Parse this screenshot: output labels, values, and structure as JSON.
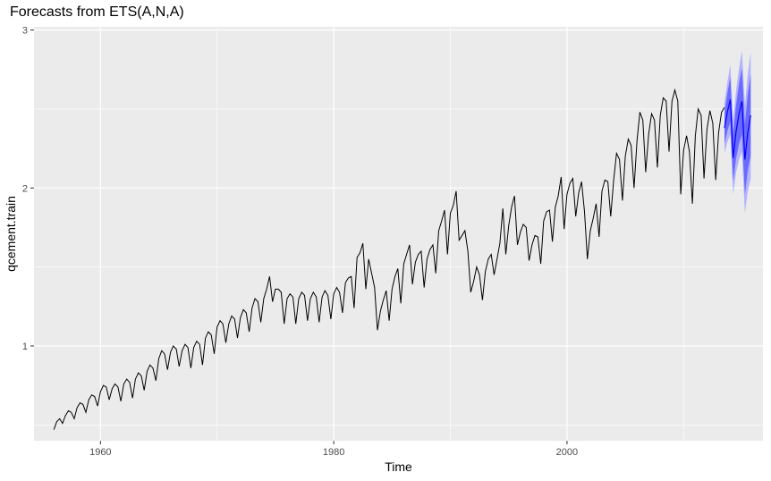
{
  "chart_data": {
    "type": "line",
    "title": "Forecasts from ETS(A,N,A)",
    "xlabel": "Time",
    "ylabel": "qcement.train",
    "xlim": [
      1954.3,
      2016.8
    ],
    "ylim": [
      0.4,
      3.02
    ],
    "x_ticks": [
      1960,
      1980,
      2000
    ],
    "x_tick_labels": [
      "1960",
      "1980",
      "2000"
    ],
    "y_ticks": [
      1,
      2,
      3
    ],
    "y_tick_labels": [
      "1",
      "2",
      "3"
    ],
    "grid": true,
    "colors": {
      "panel": "#ebebeb",
      "grid_major": "#ffffff",
      "series": "#000000",
      "forecast": "#0000ff",
      "pi_95": "#b3b3ff",
      "pi_80": "#6a6aff"
    },
    "series": [
      {
        "kind": "observed",
        "start": 1956.0,
        "frequency": 4,
        "values": [
          0.47,
          0.52,
          0.54,
          0.51,
          0.56,
          0.59,
          0.58,
          0.54,
          0.61,
          0.64,
          0.63,
          0.58,
          0.66,
          0.69,
          0.68,
          0.62,
          0.71,
          0.75,
          0.74,
          0.66,
          0.73,
          0.76,
          0.74,
          0.65,
          0.76,
          0.79,
          0.77,
          0.67,
          0.79,
          0.83,
          0.81,
          0.72,
          0.84,
          0.88,
          0.86,
          0.78,
          0.92,
          0.97,
          0.95,
          0.85,
          0.96,
          1.0,
          0.98,
          0.87,
          0.97,
          1.01,
          0.99,
          0.86,
          0.99,
          1.03,
          1.01,
          0.88,
          1.05,
          1.09,
          1.07,
          0.95,
          1.12,
          1.16,
          1.14,
          1.02,
          1.14,
          1.19,
          1.17,
          1.05,
          1.18,
          1.23,
          1.21,
          1.09,
          1.24,
          1.3,
          1.28,
          1.15,
          1.3,
          1.36,
          1.44,
          1.28,
          1.36,
          1.36,
          1.34,
          1.14,
          1.3,
          1.33,
          1.31,
          1.14,
          1.3,
          1.34,
          1.32,
          1.16,
          1.3,
          1.34,
          1.31,
          1.15,
          1.31,
          1.35,
          1.32,
          1.17,
          1.33,
          1.37,
          1.34,
          1.21,
          1.4,
          1.43,
          1.44,
          1.24,
          1.56,
          1.59,
          1.65,
          1.36,
          1.55,
          1.46,
          1.37,
          1.1,
          1.22,
          1.29,
          1.35,
          1.16,
          1.36,
          1.44,
          1.49,
          1.27,
          1.52,
          1.58,
          1.64,
          1.39,
          1.53,
          1.58,
          1.6,
          1.37,
          1.55,
          1.61,
          1.64,
          1.46,
          1.73,
          1.79,
          1.86,
          1.58,
          1.84,
          1.89,
          1.98,
          1.67,
          1.7,
          1.73,
          1.6,
          1.34,
          1.41,
          1.5,
          1.45,
          1.29,
          1.47,
          1.55,
          1.58,
          1.45,
          1.55,
          1.65,
          1.87,
          1.58,
          1.76,
          1.88,
          1.95,
          1.64,
          1.72,
          1.77,
          1.75,
          1.54,
          1.64,
          1.7,
          1.69,
          1.52,
          1.79,
          1.85,
          1.86,
          1.66,
          1.88,
          1.95,
          2.07,
          1.74,
          1.96,
          2.03,
          2.06,
          1.82,
          1.97,
          2.04,
          1.85,
          1.55,
          1.73,
          1.81,
          1.9,
          1.69,
          1.98,
          2.05,
          2.04,
          1.82,
          2.05,
          2.22,
          2.18,
          1.92,
          2.2,
          2.31,
          2.27,
          2.0,
          2.3,
          2.48,
          2.43,
          2.1,
          2.34,
          2.47,
          2.43,
          2.13,
          2.46,
          2.57,
          2.55,
          2.23,
          2.55,
          2.62,
          2.55,
          1.96,
          2.24,
          2.33,
          2.23,
          1.9,
          2.33,
          2.5,
          2.46,
          2.06,
          2.37,
          2.49,
          2.41,
          2.05,
          2.35,
          2.48,
          2.51
        ]
      },
      {
        "kind": "forecast",
        "start": 2013.5,
        "frequency": 4,
        "values": [
          2.38,
          2.48,
          2.56,
          2.19,
          2.36,
          2.47,
          2.55,
          2.18,
          2.35,
          2.46
        ],
        "lower_80": [
          2.28,
          2.36,
          2.42,
          2.04,
          2.19,
          2.28,
          2.34,
          1.96,
          2.11,
          2.2
        ],
        "upper_80": [
          2.48,
          2.6,
          2.7,
          2.34,
          2.53,
          2.66,
          2.76,
          2.4,
          2.59,
          2.72
        ],
        "lower_95": [
          2.22,
          2.29,
          2.34,
          1.96,
          2.1,
          2.18,
          2.23,
          1.84,
          1.98,
          2.06
        ],
        "upper_95": [
          2.54,
          2.67,
          2.78,
          2.42,
          2.62,
          2.76,
          2.87,
          2.52,
          2.72,
          2.86
        ]
      }
    ]
  }
}
